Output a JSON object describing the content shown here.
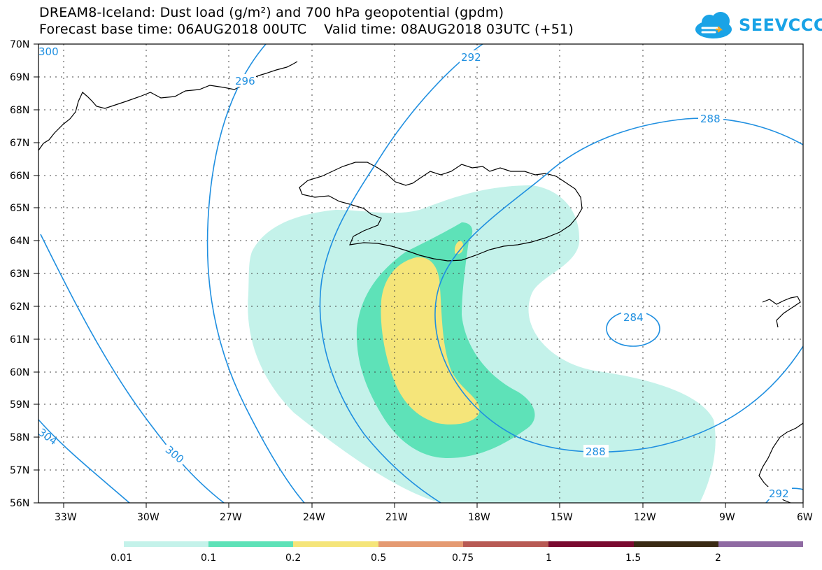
{
  "title": {
    "line1": "DREAM8-Iceland: Dust load (g/m²) and 700 hPa geopotential (gpdm)",
    "line2": "Forecast base time: 06AUG2018 00UTC    Valid time: 08AUG2018 03UTC (+51)"
  },
  "logo": {
    "text": "SEEVCCC",
    "icon": "cloud-icon",
    "color": "#1aa3e6"
  },
  "map": {
    "lon_range": [
      -34.5,
      -6
    ],
    "lat_range": [
      56,
      70
    ],
    "lon_ticks": [
      "33W",
      "30W",
      "27W",
      "24W",
      "21W",
      "18W",
      "15W",
      "12W",
      "9W",
      "6W"
    ],
    "lat_ticks": [
      "70N",
      "69N",
      "68N",
      "67N",
      "66N",
      "65N",
      "64N",
      "63N",
      "62N",
      "61N",
      "60N",
      "59N",
      "58N",
      "57N",
      "56N"
    ],
    "contour_labels": [
      "300",
      "296",
      "292",
      "288",
      "284",
      "288",
      "300",
      "292",
      "304"
    ]
  },
  "legend": {
    "labels": [
      "0.01",
      "0.1",
      "0.2",
      "0.5",
      "0.75",
      "1",
      "1.5",
      "2"
    ],
    "colors": [
      "#c4f2ea",
      "#5ee2b8",
      "#f5e57a",
      "#e59a72",
      "#b85a54",
      "#7a0a30",
      "#3a2a14",
      "#8f6aa3"
    ]
  },
  "colors": {
    "dust_0.01": "#c4f2ea",
    "dust_0.1": "#5ee2b8",
    "dust_0.2": "#f5e57a",
    "contour": "#1f8fe0"
  }
}
